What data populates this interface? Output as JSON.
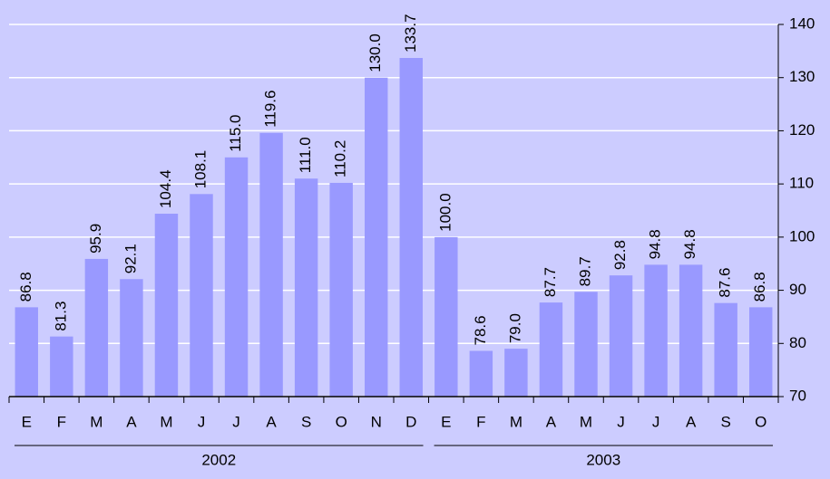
{
  "chart_data": {
    "type": "bar",
    "color": "#9999ff",
    "grid": true,
    "value_axis_side": "right",
    "ylim": [
      70,
      140
    ],
    "yticks": [
      70,
      80,
      90,
      100,
      110,
      120,
      130,
      140
    ],
    "groups": [
      {
        "label": "2002",
        "categories": [
          "E",
          "F",
          "M",
          "A",
          "M",
          "J",
          "J",
          "A",
          "S",
          "O",
          "N",
          "D"
        ],
        "values": [
          86.8,
          81.3,
          95.9,
          92.1,
          104.4,
          108.1,
          115.0,
          119.6,
          111.0,
          110.2,
          130.0,
          133.7
        ],
        "value_labels": [
          "86.8",
          "81.3",
          "95.9",
          "92.1",
          "104.4",
          "108.1",
          "115.0",
          "119.6",
          "111.0",
          "110.2",
          "130.0",
          "133.7"
        ]
      },
      {
        "label": "2003",
        "categories": [
          "E",
          "F",
          "M",
          "A",
          "M",
          "J",
          "J",
          "A",
          "S",
          "O"
        ],
        "values": [
          100.0,
          78.6,
          79.0,
          87.7,
          89.7,
          92.8,
          94.8,
          94.8,
          87.6,
          86.8
        ],
        "value_labels": [
          "100.0",
          "78.6",
          "79.0",
          "87.7",
          "89.7",
          "92.8",
          "94.8",
          "94.8",
          "87.6",
          "86.8"
        ]
      }
    ]
  }
}
